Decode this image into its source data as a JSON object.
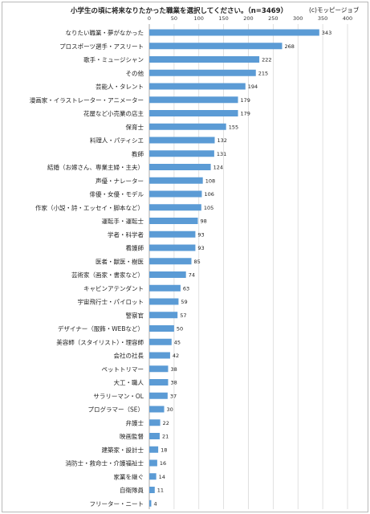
{
  "title": "小学生の頃に将来なりたかった職業を選択してください。（n=3469）",
  "credit": "(c)モッピージョブ",
  "chart_data": {
    "type": "bar",
    "orientation": "horizontal",
    "title": "小学生の頃に将来なりたかった職業を選択してください。（n=3469）",
    "xlim": [
      0,
      400
    ],
    "ticks": [
      0,
      50,
      100,
      150,
      200,
      250,
      300,
      350,
      400
    ],
    "grid": true,
    "color": "#5b9bd5",
    "categories": [
      "なりたい職業・夢がなかった",
      "プロスポーツ選手・アスリート",
      "歌手・ミュージシャン",
      "その他",
      "芸能人・タレント",
      "漫画家・イラストレーター・アニメーター",
      "花屋など小売業の店主",
      "保育士",
      "料理人・パティシエ",
      "教師",
      "結婚（お嫁さん、専業主婦・主夫）",
      "声優・ナレーター",
      "俳優・女優・モデル",
      "作家（小説・詩・エッセイ・脚本など）",
      "運転手・運転士",
      "学者・科学者",
      "看護師",
      "医者・獣医・樹医",
      "芸術家（画家・書家など）",
      "キャビンアテンダント",
      "宇宙飛行士・パイロット",
      "警察官",
      "デザイナー（服飾・WEBなど）",
      "美容師（スタイリスト）・理容師",
      "会社の社長",
      "ペットトリマー",
      "大工・職人",
      "サラリーマン・OL",
      "プログラマー（SE）",
      "弁護士",
      "映画監督",
      "建築家・設計士",
      "消防士・救命士・介護福祉士",
      "家業を継ぐ",
      "自衛隊員",
      "フリーター・ニート"
    ],
    "values": [
      343,
      268,
      222,
      215,
      194,
      179,
      179,
      155,
      132,
      131,
      124,
      108,
      106,
      105,
      98,
      93,
      93,
      85,
      74,
      63,
      59,
      57,
      50,
      45,
      42,
      38,
      38,
      37,
      30,
      22,
      21,
      18,
      16,
      14,
      11,
      4
    ]
  }
}
